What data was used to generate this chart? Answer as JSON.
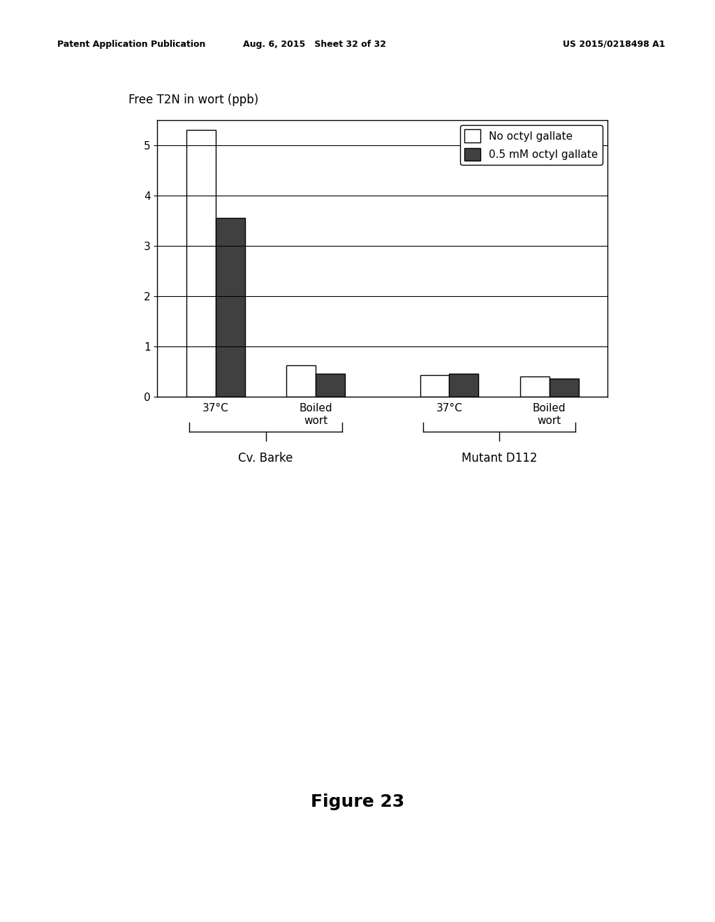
{
  "title_ylabel": "Free T2N in wort (ppb)",
  "figure_title": "Figure 23",
  "ylim": [
    0,
    5.5
  ],
  "yticks": [
    0,
    1,
    2,
    3,
    4,
    5
  ],
  "bar_width": 0.35,
  "groups": [
    "37°C",
    "Boiled\nwort",
    "37°C",
    "Boiled\nwort"
  ],
  "group_centers": [
    1.0,
    2.2,
    3.8,
    5.0
  ],
  "no_gallate_values": [
    5.3,
    0.62,
    0.42,
    0.4
  ],
  "with_gallate_values": [
    3.55,
    0.45,
    0.45,
    0.35
  ],
  "color_no_gallate": "#ffffff",
  "color_with_gallate": "#404040",
  "edgecolor": "#000000",
  "legend_labels": [
    "No octyl gallate",
    "0.5 mM octyl gallate"
  ],
  "group_label_1": "Cv. Barke",
  "group_label_2": "Mutant D112",
  "header_left": "Patent Application Publication",
  "header_mid": "Aug. 6, 2015   Sheet 32 of 32",
  "header_right": "US 2015/0218498 A1",
  "background_color": "#ffffff",
  "grid_color": "#000000",
  "font_size_ticks": 11,
  "font_size_ylabel": 12,
  "font_size_legend": 11,
  "font_size_grouplabel": 12,
  "font_size_figure_title": 18,
  "font_size_header": 9
}
